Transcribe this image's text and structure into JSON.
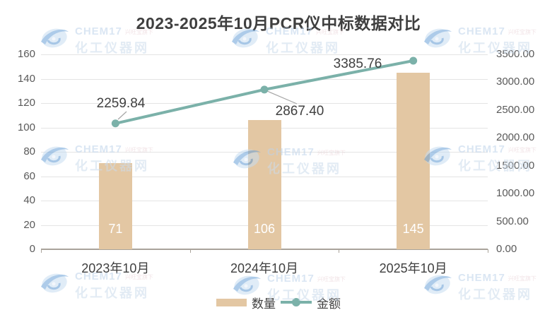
{
  "title": "2023-2025年10月PCR仪中标数据对比",
  "legend": {
    "bar_label": "数量",
    "line_label": "金额"
  },
  "watermark": {
    "brand": "CHEM17",
    "tagline": "兴旺宝旗下",
    "site": "化工仪器网"
  },
  "chart_data": {
    "type": "bar",
    "subtype": "bar+line combo, dual axis",
    "title": "2023-2025年10月PCR仪中标数据对比",
    "categories": [
      "2023年10月",
      "2024年10月",
      "2025年10月"
    ],
    "series": [
      {
        "name": "数量",
        "type": "bar",
        "axis": "left",
        "values": [
          71,
          106,
          145
        ],
        "data_labels": [
          "71",
          "106",
          "145"
        ],
        "color": "#e3c7a3"
      },
      {
        "name": "金额",
        "type": "line",
        "axis": "right",
        "values": [
          2259.84,
          2867.4,
          3385.76
        ],
        "data_labels": [
          "2259.84",
          "2867.40",
          "3385.76"
        ],
        "color": "#7bb1a9"
      }
    ],
    "left_axis": {
      "min": 0,
      "max": 160,
      "step": 20,
      "tick_labels": [
        "0",
        "20",
        "40",
        "60",
        "80",
        "100",
        "120",
        "140",
        "160"
      ]
    },
    "right_axis": {
      "min": 0,
      "max": 3500,
      "step": 500,
      "tick_labels": [
        "0.00",
        "500.00",
        "1000.00",
        "1500.00",
        "2000.00",
        "2500.00",
        "3000.00",
        "3500.00"
      ]
    },
    "grid": true,
    "legend_position": "bottom"
  }
}
